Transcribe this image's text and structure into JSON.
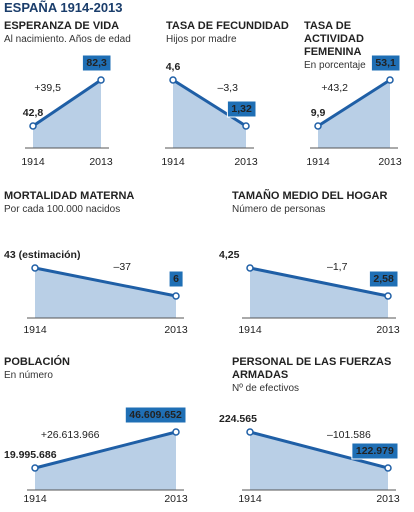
{
  "title": "ESPAÑA 1914-2013",
  "chart_data": [
    {
      "type": "line",
      "title": "ESPERANZA DE VIDA",
      "subtitle": "Al nacimiento. Años de edad",
      "categories": [
        "1914",
        "2013"
      ],
      "values": [
        42.8,
        82.3
      ],
      "value_labels": [
        "42,8",
        "82,3"
      ],
      "annotation": "+39,5",
      "color": "#1f5fa6",
      "area_color": "#b9cfe6"
    },
    {
      "type": "line",
      "title": "TASA DE FECUNDIDAD",
      "subtitle": "Hijos por madre",
      "categories": [
        "1914",
        "2013"
      ],
      "values": [
        4.6,
        1.32
      ],
      "value_labels": [
        "4,6",
        "1,32"
      ],
      "annotation": "–3,3",
      "color": "#1f5fa6",
      "area_color": "#b9cfe6"
    },
    {
      "type": "line",
      "title": "TASA DE ACTIVIDAD FEMENINA",
      "subtitle": "En porcentaje",
      "categories": [
        "1914",
        "2013"
      ],
      "values": [
        9.9,
        53.1
      ],
      "value_labels": [
        "9,9",
        "53,1"
      ],
      "annotation": "+43,2",
      "color": "#1f5fa6",
      "area_color": "#b9cfe6"
    },
    {
      "type": "line",
      "title": "MORTALIDAD MATERNA",
      "subtitle": "Por cada  100.000 nacidos",
      "categories": [
        "1914",
        "2013"
      ],
      "values": [
        43,
        6
      ],
      "value_labels": [
        "43 (estimación)",
        "6"
      ],
      "annotation": "–37",
      "color": "#1f5fa6",
      "area_color": "#b9cfe6"
    },
    {
      "type": "line",
      "title": "TAMAÑO MEDIO DEL HOGAR",
      "subtitle": "Número de personas",
      "categories": [
        "1914",
        "2013"
      ],
      "values": [
        4.25,
        2.58
      ],
      "value_labels": [
        "4,25",
        "2,58"
      ],
      "annotation": "–1,7",
      "color": "#1f5fa6",
      "area_color": "#b9cfe6"
    },
    {
      "type": "line",
      "title": "POBLACIÓN",
      "subtitle": "En número",
      "categories": [
        "1914",
        "2013"
      ],
      "values": [
        19995686,
        46609652
      ],
      "value_labels": [
        "19.995.686",
        "46.609.652"
      ],
      "annotation": "+26.613.966",
      "color": "#1f5fa6",
      "area_color": "#b9cfe6"
    },
    {
      "type": "line",
      "title": "PERSONAL DE LAS FUERZAS ARMADAS",
      "subtitle": "Nº de efectivos",
      "categories": [
        "1914",
        "2013"
      ],
      "values": [
        224565,
        122979
      ],
      "value_labels": [
        "224.565",
        "122.979"
      ],
      "annotation": "–101.586",
      "color": "#1f5fa6",
      "area_color": "#b9cfe6"
    }
  ]
}
